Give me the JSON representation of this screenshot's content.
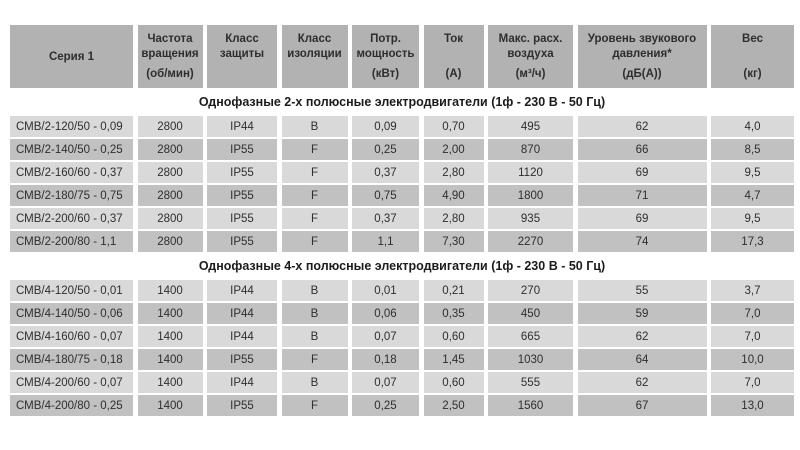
{
  "colors": {
    "page_background": "#ffffff",
    "header_cell_background": "#b2b2b2",
    "row_light_background": "#d9d9d9",
    "row_dark_background": "#c1c1c1",
    "text": "#2e2e2e"
  },
  "table": {
    "headers": [
      {
        "label": "Серия 1",
        "unit": ""
      },
      {
        "label": "Частота вращения",
        "unit": "(об/мин)"
      },
      {
        "label": "Класс защиты",
        "unit": ""
      },
      {
        "label": "Класс изоляции",
        "unit": ""
      },
      {
        "label": "Потр. мощность",
        "unit": "(кВт)"
      },
      {
        "label": "Ток",
        "unit": "(А)"
      },
      {
        "label": "Макс. расх. воздуха",
        "unit": "(м³/ч)"
      },
      {
        "label": "Уровень звукового давления*",
        "unit": "(дБ(А))"
      },
      {
        "label": "Вес",
        "unit": "(кг)"
      }
    ],
    "sections": [
      {
        "title": "Однофазные 2-х полюсные электродвигатели (1ф - 230 В - 50 Гц)",
        "rows": [
          [
            "СМВ/2-120/50 - 0,09",
            "2800",
            "IP44",
            "B",
            "0,09",
            "0,70",
            "495",
            "62",
            "4,0"
          ],
          [
            "СМВ/2-140/50 - 0,25",
            "2800",
            "IP55",
            "F",
            "0,25",
            "2,00",
            "870",
            "66",
            "8,5"
          ],
          [
            "СМВ/2-160/60 - 0,37",
            "2800",
            "IP55",
            "F",
            "0,37",
            "2,80",
            "1120",
            "69",
            "9,5"
          ],
          [
            "СМВ/2-180/75 - 0,75",
            "2800",
            "IP55",
            "F",
            "0,75",
            "4,90",
            "1800",
            "71",
            "4,7"
          ],
          [
            "СМВ/2-200/60 - 0,37",
            "2800",
            "IP55",
            "F",
            "0,37",
            "2,80",
            "935",
            "69",
            "9,5"
          ],
          [
            "СМВ/2-200/80 - 1,1",
            "2800",
            "IP55",
            "F",
            "1,1",
            "7,30",
            "2270",
            "74",
            "17,3"
          ]
        ]
      },
      {
        "title": "Однофазные 4-х полюсные электродвигатели (1ф - 230 В - 50 Гц)",
        "rows": [
          [
            "СМВ/4-120/50 - 0,01",
            "1400",
            "IP44",
            "B",
            "0,01",
            "0,21",
            "270",
            "55",
            "3,7"
          ],
          [
            "СМВ/4-140/50 - 0,06",
            "1400",
            "IP44",
            "B",
            "0,06",
            "0,35",
            "450",
            "59",
            "7,0"
          ],
          [
            "СМВ/4-160/60 - 0,07",
            "1400",
            "IP44",
            "B",
            "0,07",
            "0,60",
            "665",
            "62",
            "7,0"
          ],
          [
            "СМВ/4-180/75 - 0,18",
            "1400",
            "IP55",
            "F",
            "0,18",
            "1,45",
            "1030",
            "64",
            "10,0"
          ],
          [
            "СМВ/4-200/60 - 0,07",
            "1400",
            "IP44",
            "B",
            "0,07",
            "0,60",
            "555",
            "62",
            "7,0"
          ],
          [
            "СМВ/4-200/80 - 0,25",
            "1400",
            "IP55",
            "F",
            "0,25",
            "2,50",
            "1560",
            "67",
            "13,0"
          ]
        ]
      }
    ]
  }
}
